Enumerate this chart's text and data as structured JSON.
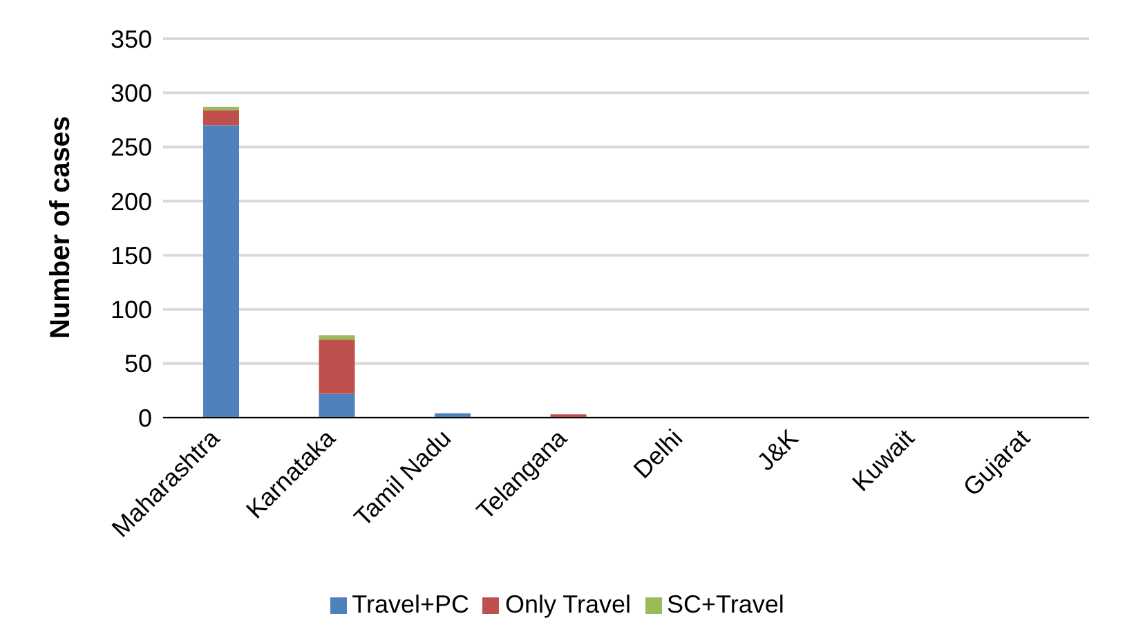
{
  "chart_data": {
    "type": "bar",
    "stacked": true,
    "ylabel": "Number of cases",
    "categories": [
      "Maharashtra",
      "Karnataka",
      "Tamil Nadu",
      "Telangana",
      "Delhi",
      "J&K",
      "Kuwait",
      "Gujarat"
    ],
    "series": [
      {
        "name": "Travel+PC",
        "color": "#4f81bd",
        "values": [
          270,
          22,
          4,
          0,
          0,
          0,
          0,
          0
        ]
      },
      {
        "name": "Only Travel",
        "color": "#c0504d",
        "values": [
          14,
          50,
          0,
          3,
          0,
          0,
          0,
          0
        ]
      },
      {
        "name": "SC+Travel",
        "color": "#9bbb59",
        "values": [
          3,
          4,
          0,
          0,
          0,
          0,
          0,
          0
        ]
      }
    ],
    "ylim": [
      0,
      350
    ],
    "yticks": [
      0,
      50,
      100,
      150,
      200,
      250,
      300,
      350
    ],
    "grid": "y",
    "legend": "bottom"
  }
}
